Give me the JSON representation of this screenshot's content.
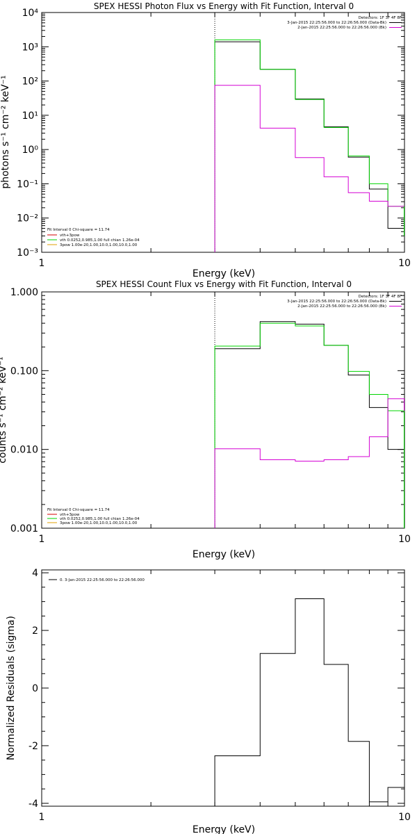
{
  "colors": {
    "black": "#000000",
    "green": "#00d400",
    "magenta": "#d400d4",
    "orange": "#e0a000",
    "red": "#d40000"
  },
  "chart_data": [
    {
      "type": "line",
      "title": "SPEX HESSI Photon Flux vs Energy with Fit Function, Interval 0",
      "xlabel": "Energy (keV)",
      "ylabel": "photons s⁻¹ cm⁻² keV⁻¹",
      "xscale": "log",
      "yscale": "log",
      "xlim": [
        1,
        10
      ],
      "ylim": [
        0.001,
        10000
      ],
      "xticks": [
        "1",
        "10"
      ],
      "yticks": [
        "10⁻³",
        "10⁻²",
        "10⁻¹",
        "10⁰",
        "10¹",
        "10²",
        "10³",
        "10⁴"
      ],
      "vline_x": 3,
      "legend_right": {
        "header": "Detectors: 1F 3F 4F 8F",
        "entries": [
          {
            "text": "3-Jan-2015 22:25:56.000 to 22:26:56.000 (Data-Bk)",
            "color": "black"
          },
          {
            "text": "2-Jan-2015 22:25:56.000 to 22:26:56.000 (Bk)",
            "color": "magenta"
          }
        ]
      },
      "legend_left": {
        "header": "Fit Interval 0   Chi-square = 11.74",
        "entries": [
          {
            "text": "vth+3pow",
            "color": "red"
          },
          {
            "text": "vth 0.0252,0.985,1.00  full chian 1.26e-04",
            "color": "green"
          },
          {
            "text": "3pow 1.00e-20,1.00,10.0,1.00,10.0,1.00",
            "color": "orange"
          }
        ]
      },
      "edges": [
        3,
        4,
        5,
        6,
        7,
        8,
        9,
        10
      ],
      "series": [
        {
          "color": "black",
          "values": [
            1400,
            220,
            30,
            4.6,
            0.6,
            0.07,
            0.005
          ]
        },
        {
          "color": "green",
          "values": [
            1600,
            220,
            29,
            4.4,
            0.65,
            0.1,
            0.022
          ]
        },
        {
          "color": "magenta",
          "values": [
            75,
            4.2,
            0.58,
            0.16,
            0.055,
            0.031,
            0.022
          ]
        }
      ],
      "tails": [
        {
          "color": "magenta",
          "from": 0.022,
          "to": 0.003
        },
        {
          "color": "green",
          "from": 0.022,
          "to": 0.003
        }
      ]
    },
    {
      "type": "line",
      "title": "SPEX HESSI Count Flux vs Energy with Fit Function, Interval 0",
      "xlabel": "Energy (keV)",
      "ylabel": "counts s⁻¹ cm⁻² keV⁻¹",
      "xscale": "log",
      "yscale": "log",
      "xlim": [
        1,
        10
      ],
      "ylim": [
        0.001,
        1
      ],
      "xticks": [
        "1",
        "10"
      ],
      "yticks": [
        "0.001",
        "0.010",
        "0.100",
        "1.000"
      ],
      "vline_x": 3,
      "legend_right": {
        "header": "Detectors: 1F 3F 4F 8F",
        "entries": [
          {
            "text": "3-Jan-2015 22:25:56.000 to 22:26:56.000 (Data-Bk)",
            "color": "black"
          },
          {
            "text": "2-Jan-2015 22:25:56.000 to 22:26:56.000 (Bk)",
            "color": "magenta"
          }
        ]
      },
      "legend_left": {
        "header": "Fit Interval 0   Chi-square = 11.74",
        "entries": [
          {
            "text": "vth+3pow",
            "color": "red"
          },
          {
            "text": "vth 0.0252,0.985,1.00  full chian 1.26e-04",
            "color": "green"
          },
          {
            "text": "3pow 1.00e-20,1.00,10.0,1.00,10.0,1.00",
            "color": "orange"
          }
        ]
      },
      "edges": [
        3,
        4,
        5,
        6,
        7,
        8,
        9,
        10
      ],
      "series": [
        {
          "color": "black",
          "values": [
            0.19,
            0.42,
            0.39,
            0.21,
            0.088,
            0.034,
            0.01
          ]
        },
        {
          "color": "green",
          "values": [
            0.205,
            0.4,
            0.37,
            0.21,
            0.098,
            0.05,
            0.031
          ]
        },
        {
          "color": "magenta",
          "values": [
            0.0102,
            0.0074,
            0.0071,
            0.0074,
            0.0081,
            0.0145,
            0.044
          ]
        }
      ],
      "tails": [
        {
          "color": "magenta",
          "from": 0.044,
          "to": 0.001
        },
        {
          "color": "green",
          "from": 0.031,
          "to": 0.001
        }
      ]
    },
    {
      "type": "line",
      "title": "",
      "xlabel": "Energy (keV)",
      "ylabel": "Normalized Residuals (sigma)",
      "xscale": "log",
      "yscale": "linear",
      "xlim": [
        1,
        10
      ],
      "ylim": [
        -4.1,
        4.1
      ],
      "xticks": [
        "1",
        "10"
      ],
      "yticks": [
        "-4",
        "-2",
        "0",
        "2",
        "4"
      ],
      "legend_left": {
        "header": "",
        "entries": [
          {
            "text": "0.  3-Jan-2015 22:25:56.000 to 22:26:56.000",
            "color": "black"
          }
        ]
      },
      "edges": [
        3,
        4,
        5,
        6,
        7,
        8,
        9,
        10
      ],
      "series": [
        {
          "color": "black",
          "values": [
            -2.35,
            1.2,
            3.1,
            0.82,
            -1.85,
            -3.95,
            -3.45
          ]
        }
      ]
    }
  ]
}
